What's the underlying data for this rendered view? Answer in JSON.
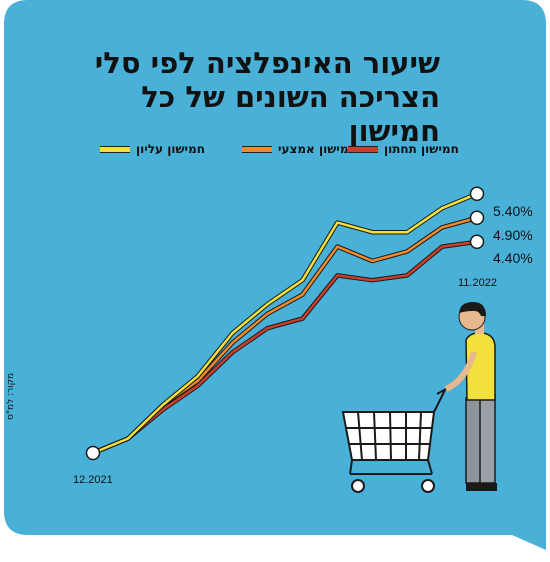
{
  "title_line1": "שיעור האינפלציה לפי סלי",
  "title_line2": "הצריכה השונים של כל חמישון",
  "source": "מקור: למ\"ס",
  "colors": {
    "background": "#49b0d8",
    "upper": "#f2e03c",
    "middle": "#f08a2c",
    "lower": "#c8402b"
  },
  "chart_data": {
    "type": "line",
    "title": "שיעור האינפלציה לפי סלי הצריכה השונים של כל חמישון",
    "x_start_label": "12.2021",
    "x_end_label": "11.2022",
    "legend_position": "top",
    "grid": false,
    "series": [
      {
        "name": "חמישון עליון",
        "color": "#f2e03c",
        "end_label": "5.40%",
        "values": [
          0,
          0.3,
          1.0,
          1.6,
          2.5,
          3.1,
          3.6,
          4.8,
          4.6,
          4.6,
          5.1,
          5.4
        ]
      },
      {
        "name": "חמישון אמצעי",
        "color": "#f08a2c",
        "end_label": "4.90%",
        "values": [
          0,
          0.3,
          1.0,
          1.5,
          2.3,
          2.9,
          3.3,
          4.3,
          4.0,
          4.2,
          4.7,
          4.9
        ]
      },
      {
        "name": "חמישון תחתון",
        "color": "#c8402b",
        "end_label": "4.40%",
        "values": [
          0,
          0.3,
          0.9,
          1.4,
          2.1,
          2.6,
          2.8,
          3.7,
          3.6,
          3.7,
          4.3,
          4.4
        ]
      }
    ]
  }
}
